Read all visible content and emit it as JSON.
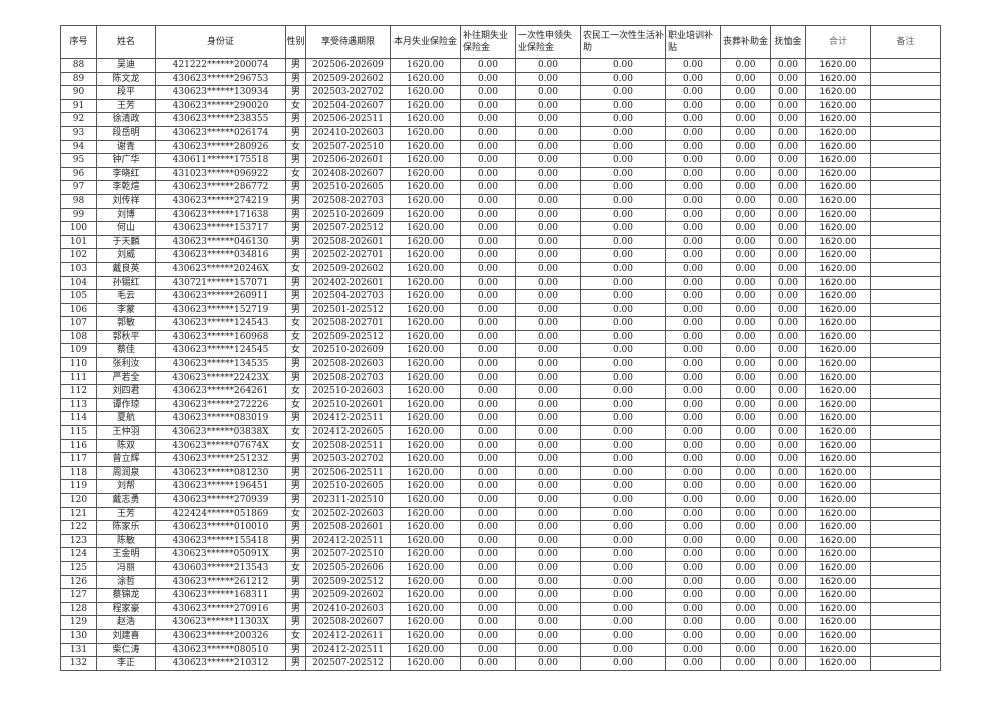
{
  "headers": [
    "序号",
    "姓名",
    "身份证",
    "性别",
    "享受待遇期限",
    "本月失业保险金",
    "补往期失业保险金",
    "一次性申领失业保险金",
    "农民工一次性生活补助",
    "职业培训补贴",
    "丧葬补助金",
    "抚恤金",
    "合计",
    "备注"
  ],
  "rows": [
    [
      "88",
      "吴迪",
      "421222******200074",
      "男",
      "202506-202609"
    ],
    [
      "89",
      "陈文龙",
      "430623******296753",
      "男",
      "202509-202602"
    ],
    [
      "90",
      "段平",
      "430623******130934",
      "男",
      "202503-202702"
    ],
    [
      "91",
      "王芳",
      "430623******290020",
      "女",
      "202504-202607"
    ],
    [
      "92",
      "徐清政",
      "430623******238355",
      "男",
      "202506-202511"
    ],
    [
      "93",
      "段岳明",
      "430623******026174",
      "男",
      "202410-202603"
    ],
    [
      "94",
      "谢青",
      "430623******280926",
      "女",
      "202507-202510"
    ],
    [
      "95",
      "钟广华",
      "430611******175518",
      "男",
      "202506-202601"
    ],
    [
      "96",
      "李晓红",
      "431023******096922",
      "女",
      "202408-202607"
    ],
    [
      "97",
      "李乾煊",
      "430623******286772",
      "男",
      "202510-202605"
    ],
    [
      "98",
      "刘传祥",
      "430623******274219",
      "男",
      "202508-202703"
    ],
    [
      "99",
      "刘博",
      "430623******171638",
      "男",
      "202510-202609"
    ],
    [
      "100",
      "何山",
      "430623******153717",
      "男",
      "202507-202512"
    ],
    [
      "101",
      "于天麟",
      "430623******046130",
      "男",
      "202508-202601"
    ],
    [
      "102",
      "刘威",
      "430623******034816",
      "男",
      "202502-202701"
    ],
    [
      "103",
      "戴良英",
      "430623******20246X",
      "女",
      "202509-202602"
    ],
    [
      "104",
      "孙锡红",
      "430721******157071",
      "男",
      "202402-202601"
    ],
    [
      "105",
      "毛云",
      "430623******260911",
      "男",
      "202504-202703"
    ],
    [
      "106",
      "李蒙",
      "430623******152719",
      "男",
      "202501-202512"
    ],
    [
      "107",
      "郭敏",
      "430623******124543",
      "女",
      "202508-202701"
    ],
    [
      "108",
      "郭秋平",
      "430623******160968",
      "女",
      "202509-202512"
    ],
    [
      "109",
      "蔡佳",
      "430623******124545",
      "女",
      "202510-202609"
    ],
    [
      "110",
      "张利汝",
      "430623******134535",
      "男",
      "202508-202603"
    ],
    [
      "111",
      "严若全",
      "430623******22423X",
      "男",
      "202508-202703"
    ],
    [
      "112",
      "刘四君",
      "430623******264261",
      "女",
      "202510-202603"
    ],
    [
      "113",
      "谭作琼",
      "430623******272226",
      "女",
      "202510-202601"
    ],
    [
      "114",
      "夏航",
      "430623******083019",
      "男",
      "202412-202511"
    ],
    [
      "115",
      "王仲羽",
      "430623******03838X",
      "女",
      "202412-202605"
    ],
    [
      "116",
      "陈双",
      "430623******07674X",
      "女",
      "202508-202511"
    ],
    [
      "117",
      "曾立辉",
      "430623******251232",
      "男",
      "202503-202702"
    ],
    [
      "118",
      "周润泉",
      "430623******081230",
      "男",
      "202506-202511"
    ],
    [
      "119",
      "刘帮",
      "430623******196451",
      "男",
      "202510-202605"
    ],
    [
      "120",
      "戴志勇",
      "430623******270939",
      "男",
      "202311-202510"
    ],
    [
      "121",
      "王芳",
      "422424******051869",
      "女",
      "202502-202603"
    ],
    [
      "122",
      "陈家乐",
      "430623******010010",
      "男",
      "202508-202601"
    ],
    [
      "123",
      "陈敏",
      "430623******155418",
      "男",
      "202412-202511"
    ],
    [
      "124",
      "王金明",
      "430623******05091X",
      "男",
      "202507-202510"
    ],
    [
      "125",
      "冯丽",
      "430603******213543",
      "女",
      "202505-202606"
    ],
    [
      "126",
      "涂哲",
      "430623******261212",
      "男",
      "202509-202512"
    ],
    [
      "127",
      "蔡锦龙",
      "430623******168311",
      "男",
      "202509-202602"
    ],
    [
      "128",
      "程家豪",
      "430623******270916",
      "男",
      "202410-202603"
    ],
    [
      "129",
      "赵浩",
      "430623******11303X",
      "男",
      "202508-202607"
    ],
    [
      "130",
      "刘建喜",
      "430623******200326",
      "女",
      "202412-202611"
    ],
    [
      "131",
      "柴仁涛",
      "430623******080510",
      "男",
      "202412-202511"
    ],
    [
      "132",
      "李正",
      "430623******210312",
      "男",
      "202507-202512"
    ]
  ],
  "amounts": {
    "monthly": "1620.00",
    "back": "0.00",
    "once": "0.00",
    "migrant": "0.00",
    "training": "0.00",
    "funeral": "0.00",
    "pension": "0.00",
    "total": "1620.00",
    "note": ""
  }
}
